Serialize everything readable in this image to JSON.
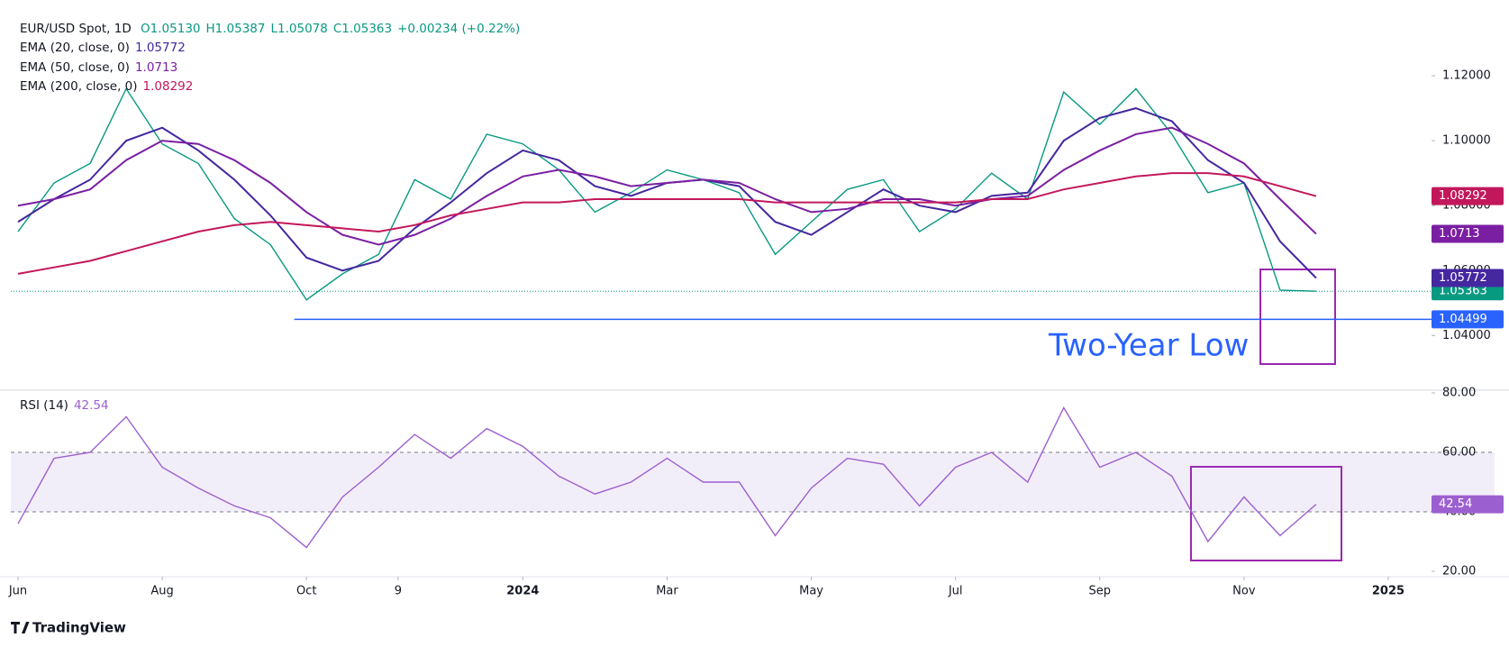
{
  "chart_data": [
    {
      "type": "line",
      "title": "EUR/USD Spot, 1D",
      "header": [
        "O1.05130",
        "H1.05387",
        "L1.05078",
        "C1.05363",
        "+0.00234 (+0.22%)"
      ],
      "x": [
        0,
        0.5,
        1,
        1.5,
        2,
        2.5,
        3,
        3.5,
        4,
        4.5,
        5,
        5.5,
        6,
        6.5,
        7,
        7.5,
        8,
        8.5,
        9,
        9.5,
        10,
        10.5,
        11,
        11.5,
        12,
        12.5,
        13,
        13.5,
        14,
        14.5,
        15,
        15.5,
        16,
        16.5,
        17,
        17.5,
        18
      ],
      "xlim": [
        -0.1,
        19.6
      ],
      "xticks": [
        {
          "value": 0,
          "label": "Jun"
        },
        {
          "value": 2,
          "label": "Aug"
        },
        {
          "value": 4,
          "label": "Oct"
        },
        {
          "value": 5.27,
          "label": "9"
        },
        {
          "value": 7,
          "label": "2024"
        },
        {
          "value": 9,
          "label": "Mar"
        },
        {
          "value": 11,
          "label": "May"
        },
        {
          "value": 13,
          "label": "Jul"
        },
        {
          "value": 15,
          "label": "Sep"
        },
        {
          "value": 17,
          "label": "Nov"
        },
        {
          "value": 19,
          "label": "2025"
        }
      ],
      "ylim": [
        1.024,
        1.14
      ],
      "yticks": [
        {
          "value": 1.04,
          "label": "1.04000"
        },
        {
          "value": 1.06,
          "label": "1.06000"
        },
        {
          "value": 1.08,
          "label": "1.08000"
        },
        {
          "value": 1.1,
          "label": "1.10000"
        },
        {
          "value": 1.12,
          "label": "1.12000"
        }
      ],
      "series": [
        {
          "color": "#089981",
          "values": [
            1.072,
            1.087,
            1.093,
            1.116,
            1.099,
            1.093,
            1.076,
            1.068,
            1.051,
            1.059,
            1.065,
            1.088,
            1.082,
            1.102,
            1.099,
            1.091,
            1.078,
            1.084,
            1.091,
            1.088,
            1.084,
            1.065,
            1.075,
            1.085,
            1.088,
            1.072,
            1.079,
            1.09,
            1.082,
            1.115,
            1.105,
            1.116,
            1.102,
            1.084,
            1.087,
            1.054,
            1.05363
          ]
        },
        {
          "name": "EMA (20, close, 0)",
          "color": "#4527a0",
          "values": [
            1.075,
            1.082,
            1.088,
            1.1,
            1.104,
            1.097,
            1.088,
            1.077,
            1.064,
            1.06,
            1.063,
            1.073,
            1.081,
            1.09,
            1.097,
            1.094,
            1.086,
            1.083,
            1.087,
            1.088,
            1.086,
            1.075,
            1.071,
            1.078,
            1.085,
            1.08,
            1.078,
            1.083,
            1.084,
            1.1,
            1.107,
            1.11,
            1.106,
            1.094,
            1.087,
            1.069,
            1.05772
          ]
        },
        {
          "name": "EMA (50, close, 0)",
          "color": "#7b1fa2",
          "values": [
            1.08,
            1.082,
            1.085,
            1.094,
            1.1,
            1.099,
            1.094,
            1.087,
            1.078,
            1.071,
            1.068,
            1.071,
            1.076,
            1.083,
            1.089,
            1.091,
            1.089,
            1.086,
            1.087,
            1.088,
            1.087,
            1.082,
            1.078,
            1.079,
            1.082,
            1.082,
            1.08,
            1.082,
            1.083,
            1.091,
            1.097,
            1.102,
            1.104,
            1.099,
            1.093,
            1.082,
            1.0713
          ]
        },
        {
          "name": "EMA (200, close, 0)",
          "color": "#c2185b",
          "values": [
            1.059,
            1.061,
            1.063,
            1.066,
            1.069,
            1.072,
            1.074,
            1.075,
            1.074,
            1.073,
            1.072,
            1.074,
            1.077,
            1.079,
            1.081,
            1.081,
            1.082,
            1.082,
            1.082,
            1.082,
            1.082,
            1.081,
            1.081,
            1.081,
            1.081,
            1.081,
            1.081,
            1.082,
            1.082,
            1.085,
            1.087,
            1.089,
            1.09,
            1.09,
            1.089,
            1.086,
            1.08292
          ]
        }
      ],
      "support": {
        "value": 1.04499,
        "x_start": 3.83,
        "color": "#2962ff"
      },
      "annotation": "Two-Year Low"
    },
    {
      "type": "line",
      "x": [
        0,
        0.5,
        1,
        1.5,
        2,
        2.5,
        3,
        3.5,
        4,
        4.5,
        5,
        5.5,
        6,
        6.5,
        7,
        7.5,
        8,
        8.5,
        9,
        9.5,
        10,
        10.5,
        11,
        11.5,
        12,
        12.5,
        13,
        13.5,
        14,
        14.5,
        15,
        15.5,
        16,
        16.5,
        17,
        17.5,
        18
      ],
      "xlim": [
        -0.1,
        19.6
      ],
      "ylim": [
        20,
        80
      ],
      "yticks": [
        {
          "value": 20,
          "label": "20.00"
        },
        {
          "value": 40,
          "label": "40.00"
        },
        {
          "value": 60,
          "label": "60.00"
        },
        {
          "value": 80,
          "label": "80.00"
        }
      ],
      "band": [
        40,
        60
      ],
      "series": [
        {
          "name": "RSI (14)",
          "color": "#9c5fd0",
          "values": [
            36,
            58,
            60,
            72,
            55,
            48,
            42,
            38,
            28,
            45,
            55,
            66,
            58,
            68,
            62,
            52,
            46,
            50,
            58,
            50,
            50,
            32,
            48,
            58,
            56,
            42,
            55,
            60,
            50,
            75,
            55,
            60,
            52,
            30,
            45,
            32,
            42.54
          ]
        }
      ]
    }
  ],
  "branding": "TradingView"
}
